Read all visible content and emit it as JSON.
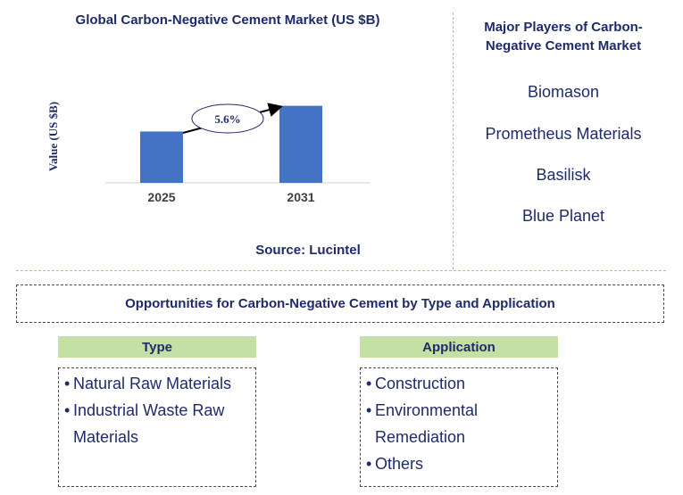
{
  "chart_data": {
    "type": "bar",
    "title": "Global Carbon-Negative Cement Market (US $B)",
    "ylabel": "Value (US $B)",
    "categories": [
      "2025",
      "2031"
    ],
    "values": [
      1.0,
      1.5
    ],
    "ylim": [
      0,
      1.65
    ],
    "annotation": {
      "text": "5.6%",
      "meaning": "CAGR"
    },
    "bar_color": "#4472c4",
    "source": "Source: Lucintel"
  },
  "players": {
    "title": "Major Players of Carbon-Negative Cement Market",
    "items": [
      "Biomason",
      "Prometheus Materials",
      "Basilisk",
      "Blue Planet"
    ]
  },
  "opportunities": {
    "title": "Opportunities for Carbon-Negative Cement by Type and Application",
    "type": {
      "heading": "Type",
      "items": [
        "Natural Raw Materials",
        "Industrial Waste Raw Materials"
      ]
    },
    "application": {
      "heading": "Application",
      "items": [
        "Construction",
        "Environmental Remediation",
        "Others"
      ]
    }
  },
  "colors": {
    "text": "#1f2a6b",
    "header_bg": "#c5e0a5",
    "divider": "#e6b84a"
  }
}
